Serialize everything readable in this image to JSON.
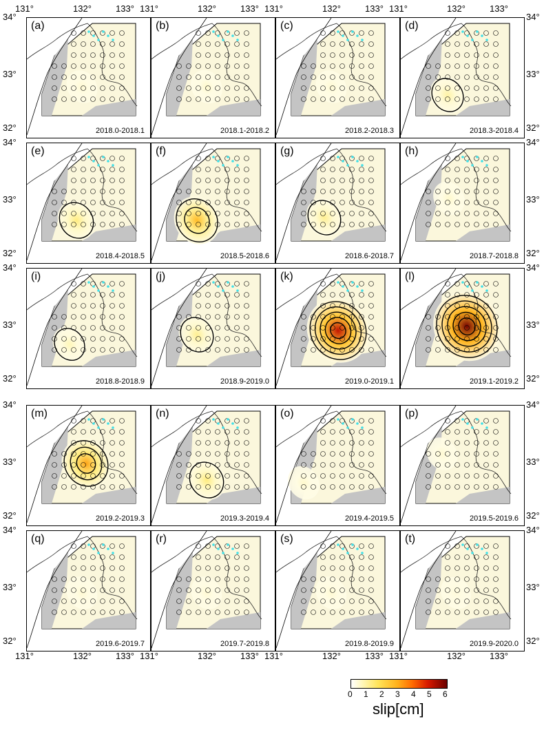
{
  "figure": {
    "lon_ticks": [
      "131°",
      "132°",
      "133°"
    ],
    "lat_ticks": [
      "34°",
      "33°",
      "32°"
    ]
  },
  "panels": [
    {
      "label": "(a)",
      "period": "2018.0-2018.1",
      "peak_slip_cm": 0.6
    },
    {
      "label": "(b)",
      "period": "2018.1-2018.2",
      "peak_slip_cm": 0.7
    },
    {
      "label": "(c)",
      "period": "2018.2-2018.3",
      "peak_slip_cm": 0.6
    },
    {
      "label": "(d)",
      "period": "2018.3-2018.4",
      "peak_slip_cm": 1.2
    },
    {
      "label": "(e)",
      "period": "2018.4-2018.5",
      "peak_slip_cm": 1.6
    },
    {
      "label": "(f)",
      "period": "2018.5-2018.6",
      "peak_slip_cm": 2.8
    },
    {
      "label": "(g)",
      "period": "2018.6-2018.7",
      "peak_slip_cm": 1.4
    },
    {
      "label": "(h)",
      "period": "2018.7-2018.8",
      "peak_slip_cm": 0.7
    },
    {
      "label": "(i)",
      "period": "2018.8-2018.9",
      "peak_slip_cm": 1.0
    },
    {
      "label": "(j)",
      "period": "2018.9-2019.0",
      "peak_slip_cm": 1.4
    },
    {
      "label": "(k)",
      "period": "2019.0-2019.1",
      "peak_slip_cm": 5.2
    },
    {
      "label": "(l)",
      "period": "2019.1-2019.2",
      "peak_slip_cm": 5.9
    },
    {
      "label": "(m)",
      "period": "2019.2-2019.3",
      "peak_slip_cm": 3.2
    },
    {
      "label": "(n)",
      "period": "2019.3-2019.4",
      "peak_slip_cm": 1.6
    },
    {
      "label": "(o)",
      "period": "2019.4-2019.5",
      "peak_slip_cm": 0.7
    },
    {
      "label": "(p)",
      "period": "2019.5-2019.6",
      "peak_slip_cm": 0.6
    },
    {
      "label": "(q)",
      "period": "2019.6-2019.7",
      "peak_slip_cm": 0.6
    },
    {
      "label": "(r)",
      "period": "2019.7-2019.8",
      "peak_slip_cm": 0.6
    },
    {
      "label": "(s)",
      "period": "2019.8-2019.9",
      "peak_slip_cm": 0.6
    },
    {
      "label": "(t)",
      "period": "2019.9-2020.0",
      "peak_slip_cm": 0.5
    }
  ],
  "colorbar": {
    "title": "slip[cm]",
    "ticks": [
      "0",
      "1",
      "2",
      "3",
      "4",
      "5",
      "6"
    ],
    "colors": [
      "#ffffff",
      "#fff7b8",
      "#ffe45a",
      "#ffb21c",
      "#ff6a00",
      "#d81a00",
      "#6a0000"
    ]
  }
}
